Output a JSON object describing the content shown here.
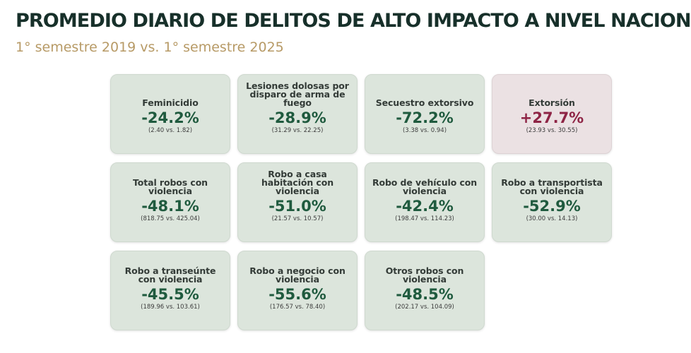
{
  "header": {
    "title": "PROMEDIO DIARIO DE DELITOS DE ALTO IMPACTO A NIVEL NACIONAL",
    "subtitle": "1° semestre 2019 vs. 1° semestre 2025"
  },
  "colors": {
    "decrease": "#1f5a3e",
    "increase": "#8e2445",
    "card_decrease_bg": "#dce5dc",
    "card_increase_bg": "#ebe1e3"
  },
  "cards": [
    {
      "label": "Feminicidio",
      "value": "-24.2%",
      "detail": "(2.40 vs. 1.82)",
      "trend": "decrease"
    },
    {
      "label": "Lesiones dolosas por disparo de arma de fuego",
      "value": "-28.9%",
      "detail": "(31.29 vs. 22.25)",
      "trend": "decrease"
    },
    {
      "label": "Secuestro extorsivo",
      "value": "-72.2%",
      "detail": "(3.38 vs. 0.94)",
      "trend": "decrease"
    },
    {
      "label": "Extorsión",
      "value": "+27.7%",
      "detail": "(23.93 vs. 30.55)",
      "trend": "increase"
    },
    {
      "label": "Total robos con violencia",
      "value": "-48.1%",
      "detail": "(818.75 vs. 425.04)",
      "trend": "decrease"
    },
    {
      "label": "Robo a casa habitación con violencia",
      "value": "-51.0%",
      "detail": "(21.57 vs. 10.57)",
      "trend": "decrease"
    },
    {
      "label": "Robo de vehículo con violencia",
      "value": "-42.4%",
      "detail": "(198.47 vs. 114.23)",
      "trend": "decrease"
    },
    {
      "label": "Robo a transportista con violencia",
      "value": "-52.9%",
      "detail": "(30.00 vs. 14.13)",
      "trend": "decrease"
    },
    {
      "label": "Robo a transeúnte con violencia",
      "value": "-45.5%",
      "detail": "(189.96 vs. 103.61)",
      "trend": "decrease"
    },
    {
      "label": "Robo a negocio con violencia",
      "value": "-55.6%",
      "detail": "(176.57 vs. 78.40)",
      "trend": "decrease"
    },
    {
      "label": "Otros robos con violencia",
      "value": "-48.5%",
      "detail": "(202.17 vs. 104.09)",
      "trend": "decrease"
    }
  ]
}
